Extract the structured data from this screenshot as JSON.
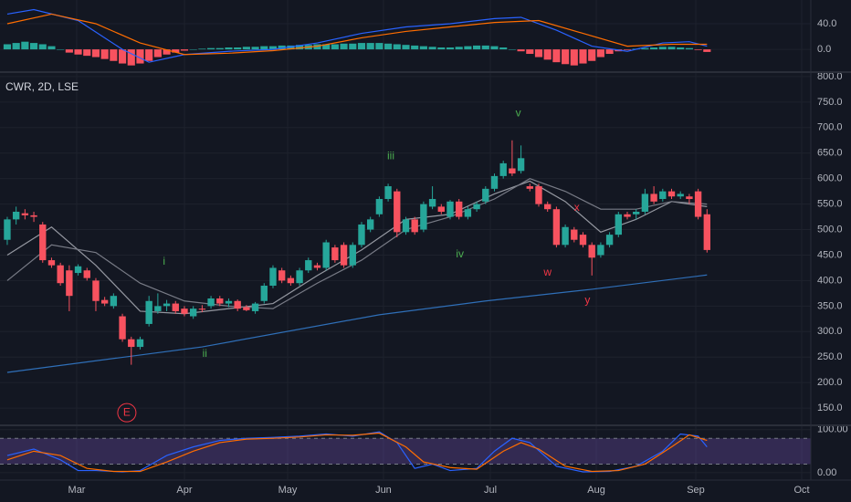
{
  "chart_data": [
    {
      "type": "macd",
      "ylim": [
        -34,
        77
      ],
      "yticks": [
        {
          "value": 40,
          "label": "40.0"
        },
        {
          "value": 0,
          "label": "0.0"
        }
      ],
      "histogram_values": [
        8,
        10,
        12,
        10,
        8,
        5,
        0,
        -5,
        -8,
        -10,
        -12,
        -15,
        -18,
        -22,
        -25,
        -22,
        -18,
        -12,
        -8,
        -5,
        -2,
        0,
        1,
        2,
        2,
        3,
        3,
        4,
        4,
        5,
        5,
        6,
        6,
        7,
        7,
        8,
        8,
        8,
        9,
        9,
        10,
        10,
        10,
        9,
        8,
        7,
        6,
        5,
        4,
        3,
        3,
        4,
        5,
        6,
        6,
        5,
        3,
        0,
        -3,
        -7,
        -12,
        -16,
        -20,
        -23,
        -25,
        -22,
        -18,
        -12,
        -7,
        -3,
        -1,
        1,
        2,
        3,
        4,
        4,
        3,
        2,
        -1,
        -4
      ],
      "up_color": "#26a69a",
      "down_color": "#f7525f",
      "series": [
        {
          "color": "#2962ff",
          "x": [
            0,
            3,
            8,
            13,
            16,
            20,
            25,
            30,
            35,
            40,
            45,
            50,
            55,
            58,
            62,
            66,
            70,
            74,
            77,
            79
          ],
          "values": [
            55,
            62,
            45,
            0,
            -20,
            -8,
            -3,
            0,
            10,
            25,
            35,
            40,
            48,
            50,
            30,
            5,
            -3,
            10,
            12,
            5
          ]
        },
        {
          "color": "#ff6d00",
          "x": [
            0,
            5,
            10,
            15,
            20,
            25,
            30,
            35,
            40,
            45,
            50,
            55,
            60,
            65,
            70,
            75,
            79
          ],
          "values": [
            40,
            55,
            40,
            10,
            -8,
            -6,
            -2,
            5,
            18,
            28,
            35,
            42,
            45,
            25,
            5,
            8,
            8
          ]
        }
      ]
    },
    {
      "type": "candlestick",
      "header": "CWR, 2D, LSE",
      "ylim": [
        118,
        807
      ],
      "xlim": [
        -0.82,
        90.72
      ],
      "yticks": [
        {
          "value": 800,
          "label": "800.0"
        },
        {
          "value": 750,
          "label": "750.0"
        },
        {
          "value": 700,
          "label": "700.0"
        },
        {
          "value": 650,
          "label": "650.0"
        },
        {
          "value": 600,
          "label": "600.0"
        },
        {
          "value": 550,
          "label": "550.0"
        },
        {
          "value": 500,
          "label": "500.0"
        },
        {
          "value": 450,
          "label": "450.0"
        },
        {
          "value": 400,
          "label": "400.0"
        },
        {
          "value": 350,
          "label": "350.0"
        },
        {
          "value": 300,
          "label": "300.0"
        },
        {
          "value": 250,
          "label": "250.0"
        },
        {
          "value": 200,
          "label": "200.0"
        },
        {
          "value": 150,
          "label": "150.0"
        }
      ],
      "xticks": [
        {
          "value": 7.84,
          "label": "Mar"
        },
        {
          "value": 20.0,
          "label": "Apr"
        },
        {
          "value": 31.65,
          "label": "May"
        },
        {
          "value": 42.47,
          "label": "Jun"
        },
        {
          "value": 54.54,
          "label": "Jul"
        },
        {
          "value": 66.5,
          "label": "Aug"
        },
        {
          "value": 77.73,
          "label": "Sep"
        },
        {
          "value": 89.69,
          "label": "Oct"
        }
      ],
      "up_color": "#26a69a",
      "down_color": "#f7525f",
      "open": [
        480,
        520,
        532,
        528,
        510,
        440,
        430,
        420,
        415,
        420,
        400,
        362,
        350,
        330,
        285,
        270,
        315,
        340,
        350,
        355,
        345,
        330,
        345,
        350,
        365,
        355,
        360,
        348,
        340,
        360,
        390,
        420,
        405,
        395,
        420,
        430,
        425,
        465,
        470,
        430,
        470,
        500,
        530,
        560,
        575,
        495,
        520,
        500,
        545,
        545,
        525,
        555,
        525,
        540,
        555,
        580,
        605,
        620,
        615,
        585,
        585,
        550,
        540,
        470,
        500,
        490,
        470,
        450,
        470,
        490,
        530,
        530,
        535,
        570,
        560,
        575,
        565,
        565,
        575,
        530
      ],
      "high": [
        525,
        545,
        540,
        535,
        515,
        445,
        435,
        430,
        432,
        425,
        405,
        368,
        375,
        335,
        290,
        290,
        370,
        375,
        362,
        360,
        350,
        350,
        352,
        370,
        370,
        365,
        363,
        352,
        358,
        395,
        430,
        425,
        410,
        425,
        445,
        435,
        480,
        470,
        475,
        475,
        515,
        525,
        565,
        590,
        580,
        525,
        525,
        555,
        585,
        550,
        558,
        560,
        545,
        555,
        585,
        610,
        635,
        675,
        665,
        590,
        590,
        555,
        545,
        510,
        505,
        495,
        475,
        475,
        495,
        535,
        535,
        540,
        580,
        585,
        580,
        580,
        575,
        570,
        580,
        540
      ],
      "low": [
        470,
        510,
        520,
        515,
        435,
        425,
        390,
        340,
        410,
        400,
        340,
        350,
        345,
        280,
        235,
        265,
        310,
        335,
        340,
        335,
        330,
        325,
        338,
        345,
        350,
        348,
        340,
        340,
        335,
        355,
        385,
        395,
        390,
        390,
        415,
        420,
        420,
        435,
        425,
        425,
        465,
        495,
        525,
        555,
        485,
        490,
        490,
        495,
        540,
        530,
        520,
        520,
        520,
        535,
        550,
        575,
        600,
        605,
        610,
        575,
        545,
        535,
        465,
        465,
        475,
        465,
        410,
        445,
        465,
        485,
        520,
        520,
        530,
        550,
        555,
        560,
        560,
        550,
        520,
        455
      ],
      "close": [
        520,
        535,
        528,
        525,
        440,
        430,
        395,
        370,
        428,
        405,
        360,
        355,
        370,
        285,
        270,
        285,
        360,
        350,
        355,
        340,
        335,
        345,
        343,
        365,
        355,
        360,
        345,
        342,
        355,
        390,
        425,
        400,
        395,
        420,
        440,
        425,
        475,
        440,
        430,
        470,
        510,
        520,
        560,
        585,
        495,
        520,
        495,
        550,
        560,
        535,
        555,
        525,
        540,
        550,
        580,
        605,
        630,
        610,
        640,
        580,
        550,
        540,
        470,
        505,
        480,
        470,
        445,
        470,
        490,
        530,
        525,
        535,
        570,
        555,
        575,
        565,
        570,
        560,
        525,
        460
      ],
      "series": [
        {
          "color": "#2f6fb8",
          "x": [
            0,
            22,
            42,
            54,
            66,
            79
          ],
          "values": [
            220,
            270,
            333,
            360,
            383,
            411
          ]
        },
        {
          "color": "#9598a1",
          "x": [
            0,
            5,
            10,
            15,
            20,
            25,
            30,
            35,
            40,
            45,
            50,
            55,
            59,
            63,
            67,
            71,
            75,
            79
          ],
          "values": [
            450,
            505,
            430,
            340,
            335,
            345,
            355,
            410,
            460,
            520,
            530,
            570,
            595,
            555,
            495,
            520,
            555,
            545
          ]
        },
        {
          "color": "#787b86",
          "x": [
            0,
            5,
            10,
            15,
            20,
            25,
            30,
            35,
            40,
            45,
            50,
            55,
            59,
            63,
            67,
            71,
            75,
            79
          ],
          "values": [
            400,
            470,
            455,
            395,
            360,
            350,
            345,
            395,
            440,
            500,
            525,
            560,
            600,
            575,
            540,
            540,
            555,
            550
          ]
        }
      ],
      "annotations": [
        {
          "text": "i",
          "x": 17.7,
          "y": 437,
          "color": "#4caf50"
        },
        {
          "text": "ii",
          "x": 22.3,
          "y": 256,
          "color": "#4caf50"
        },
        {
          "text": "iii",
          "x": 43.3,
          "y": 644,
          "color": "#4caf50"
        },
        {
          "text": "iv",
          "x": 51.1,
          "y": 451,
          "color": "#4caf50"
        },
        {
          "text": "v",
          "x": 57.7,
          "y": 728,
          "color": "#4caf50"
        },
        {
          "text": "w",
          "x": 61,
          "y": 415,
          "color": "#f23645"
        },
        {
          "text": "x",
          "x": 64.3,
          "y": 542,
          "color": "#f23645"
        },
        {
          "text": "y",
          "x": 65.5,
          "y": 361,
          "color": "#f23645"
        },
        {
          "text": "E",
          "x": 13.5,
          "y": 141,
          "color": "#f23645",
          "circled": true
        }
      ]
    },
    {
      "type": "stochastic",
      "ylim": [
        -15,
        108
      ],
      "band": [
        20,
        80
      ],
      "band_color": "#7e57c2",
      "yticks": [
        {
          "value": 100,
          "label": "100.00"
        },
        {
          "value": 0,
          "label": "0.00"
        }
      ],
      "series": [
        {
          "color": "#2962ff",
          "x": [
            0,
            3,
            6,
            8,
            10,
            13,
            15,
            18,
            21,
            24,
            27,
            30,
            33,
            36,
            39,
            42,
            44,
            46,
            48,
            50,
            53,
            55,
            57,
            59,
            62,
            65,
            68,
            71,
            74,
            76,
            78,
            79
          ],
          "values": [
            40,
            55,
            30,
            5,
            5,
            2,
            5,
            40,
            60,
            75,
            80,
            82,
            85,
            90,
            85,
            95,
            70,
            10,
            20,
            5,
            10,
            50,
            80,
            70,
            15,
            2,
            3,
            15,
            50,
            90,
            85,
            60
          ]
        },
        {
          "color": "#ff6d00",
          "x": [
            0,
            3,
            6,
            9,
            12,
            15,
            18,
            21,
            24,
            27,
            30,
            33,
            36,
            39,
            42,
            45,
            47,
            50,
            53,
            56,
            58,
            60,
            63,
            66,
            69,
            72,
            75,
            77,
            79
          ],
          "values": [
            30,
            50,
            40,
            10,
            3,
            3,
            25,
            50,
            70,
            78,
            80,
            83,
            88,
            87,
            92,
            60,
            25,
            12,
            8,
            50,
            70,
            55,
            15,
            3,
            5,
            20,
            60,
            88,
            75
          ]
        }
      ]
    }
  ]
}
